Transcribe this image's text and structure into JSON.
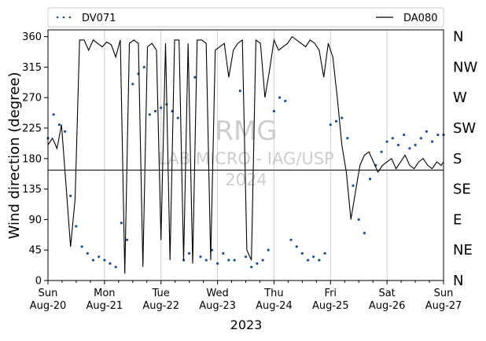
{
  "chart_data": {
    "type": "line",
    "title": "",
    "xlabel": "2023",
    "ylabel": "Wind direction (degree)",
    "ylim": [
      0,
      370
    ],
    "yticks": [
      0,
      45,
      90,
      135,
      180,
      225,
      270,
      315,
      360
    ],
    "xlim": [
      "2023-08-20",
      "2023-08-27"
    ],
    "xticks": [
      {
        "day": "Sun",
        "date": "Aug-20"
      },
      {
        "day": "Mon",
        "date": "Aug-21"
      },
      {
        "day": "Tue",
        "date": "Aug-22"
      },
      {
        "day": "Wed",
        "date": "Aug-23"
      },
      {
        "day": "Thu",
        "date": "Aug-24"
      },
      {
        "day": "Fri",
        "date": "Aug-25"
      },
      {
        "day": "Sat",
        "date": "Aug-26"
      },
      {
        "day": "Sun",
        "date": "Aug-27"
      }
    ],
    "compass_labels": [
      "N",
      "NE",
      "E",
      "SE",
      "S",
      "SW",
      "W",
      "NW",
      "N"
    ],
    "reference_line": 163,
    "grid": "vertical",
    "legend": "top",
    "watermark": [
      "RMG",
      "LAB MICRO - IAG/USP",
      "2024"
    ],
    "colors": {
      "DV071": "#1f4e8c",
      "DA080": "#000000"
    },
    "series": [
      {
        "name": "DV071",
        "style": "dotted-markers",
        "x_unit": "days since 2023-08-20 00:00",
        "x": [
          0.0,
          0.1,
          0.2,
          0.3,
          0.4,
          0.5,
          0.6,
          0.7,
          0.8,
          0.9,
          1.0,
          1.1,
          1.2,
          1.3,
          1.4,
          1.5,
          1.6,
          1.7,
          1.8,
          1.9,
          2.0,
          2.1,
          2.2,
          2.3,
          2.4,
          2.5,
          2.6,
          2.7,
          2.8,
          2.9,
          3.0,
          3.1,
          3.2,
          3.3,
          3.4,
          3.5,
          3.6,
          3.7,
          3.8,
          3.9,
          4.0,
          4.1,
          4.2,
          4.3,
          4.4,
          4.5,
          4.6,
          4.7,
          4.8,
          4.9,
          5.0,
          5.1,
          5.2,
          5.3,
          5.4,
          5.5,
          5.6,
          5.7,
          5.8,
          5.9,
          6.0,
          6.1,
          6.2,
          6.3,
          6.4,
          6.5,
          6.6,
          6.7,
          6.8,
          6.9,
          7.0
        ],
        "values": [
          210,
          245,
          230,
          220,
          125,
          80,
          50,
          40,
          30,
          35,
          30,
          25,
          20,
          85,
          60,
          290,
          305,
          315,
          245,
          250,
          255,
          260,
          250,
          240,
          30,
          40,
          300,
          35,
          30,
          45,
          25,
          40,
          30,
          30,
          280,
          35,
          20,
          25,
          30,
          45,
          250,
          270,
          265,
          60,
          50,
          40,
          30,
          35,
          30,
          40,
          230,
          235,
          240,
          210,
          140,
          90,
          70,
          150,
          170,
          190,
          205,
          210,
          200,
          215,
          195,
          200,
          210,
          220,
          205,
          215,
          215
        ]
      },
      {
        "name": "DA080",
        "style": "line",
        "x_unit": "days since 2023-08-20 00:00",
        "x": [
          0.0,
          0.08,
          0.16,
          0.24,
          0.32,
          0.4,
          0.48,
          0.56,
          0.64,
          0.72,
          0.8,
          0.88,
          0.96,
          1.04,
          1.12,
          1.2,
          1.28,
          1.36,
          1.44,
          1.52,
          1.6,
          1.68,
          1.76,
          1.84,
          1.92,
          2.0,
          2.08,
          2.16,
          2.24,
          2.32,
          2.4,
          2.48,
          2.56,
          2.64,
          2.72,
          2.8,
          2.88,
          2.96,
          3.04,
          3.12,
          3.2,
          3.28,
          3.36,
          3.44,
          3.52,
          3.6,
          3.68,
          3.76,
          3.84,
          3.92,
          4.0,
          4.08,
          4.16,
          4.24,
          4.32,
          4.4,
          4.48,
          4.56,
          4.64,
          4.72,
          4.8,
          4.88,
          4.96,
          5.04,
          5.12,
          5.2,
          5.28,
          5.36,
          5.44,
          5.52,
          5.6,
          5.68,
          5.76,
          5.84,
          5.92,
          6.0,
          6.08,
          6.16,
          6.24,
          6.32,
          6.4,
          6.48,
          6.56,
          6.64,
          6.72,
          6.8,
          6.88,
          6.96,
          7.0
        ],
        "values": [
          200,
          210,
          195,
          230,
          140,
          50,
          120,
          355,
          355,
          340,
          355,
          350,
          345,
          352,
          348,
          330,
          355,
          10,
          350,
          355,
          350,
          20,
          345,
          350,
          340,
          60,
          350,
          30,
          355,
          355,
          30,
          350,
          25,
          355,
          355,
          350,
          30,
          340,
          345,
          350,
          300,
          340,
          350,
          355,
          45,
          30,
          355,
          350,
          270,
          310,
          355,
          340,
          345,
          350,
          360,
          355,
          350,
          345,
          355,
          350,
          340,
          300,
          350,
          330,
          270,
          200,
          160,
          90,
          130,
          170,
          185,
          190,
          175,
          160,
          170,
          175,
          180,
          165,
          175,
          185,
          170,
          165,
          175,
          180,
          170,
          165,
          175,
          170,
          175
        ]
      }
    ]
  }
}
